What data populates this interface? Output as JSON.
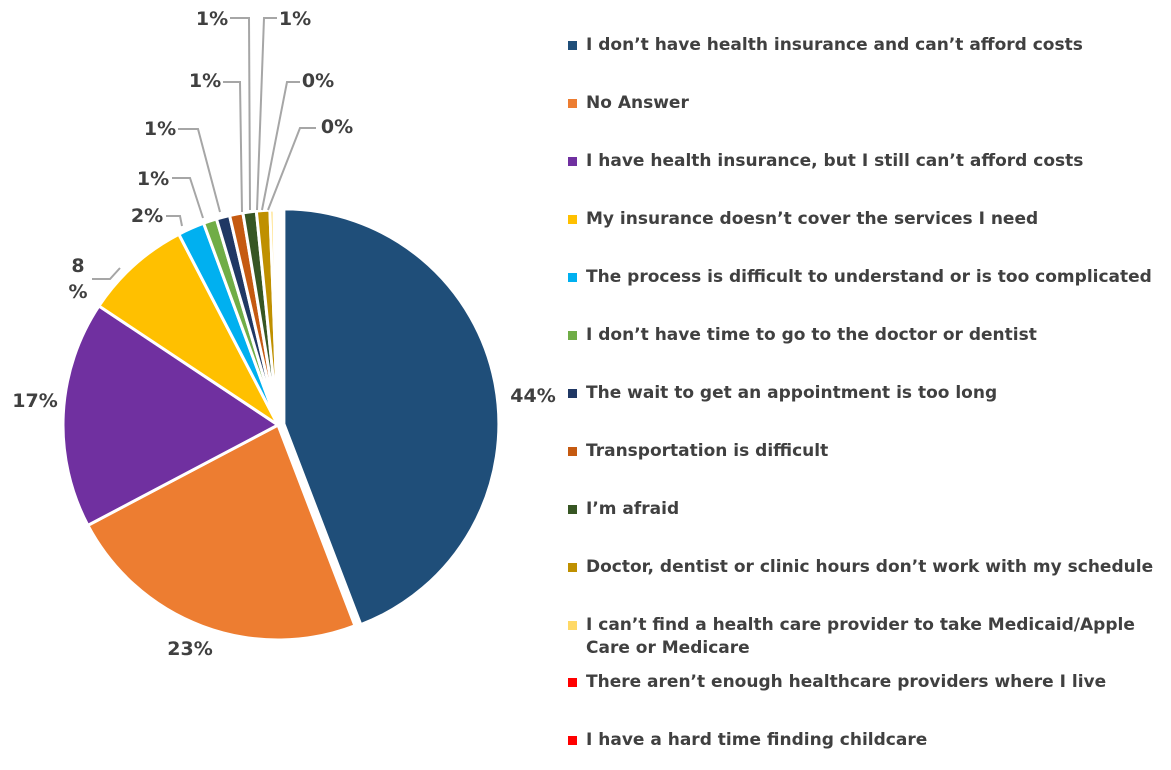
{
  "chart_data": {
    "type": "pie",
    "slices": [
      {
        "label": "I don’t have health insurance and can’t afford costs",
        "value": 44,
        "value_label": "44%",
        "color": "#1f4e79"
      },
      {
        "label": "No Answer",
        "value": 23,
        "value_label": "23%",
        "color": "#ed7d31"
      },
      {
        "label": "I have health insurance, but I still can’t afford costs",
        "value": 17,
        "value_label": "17%",
        "color": "#7030a0"
      },
      {
        "label": "My insurance doesn’t cover the services I need",
        "value": 8,
        "value_label": "8\n%",
        "color": "#ffc000"
      },
      {
        "label": "The process is difficult to understand or is too complicated",
        "value": 2,
        "value_label": "2%",
        "color": "#00b0f0"
      },
      {
        "label": "I don’t have time to go to the doctor or dentist",
        "value": 1,
        "value_label": "1%",
        "color": "#70ad47"
      },
      {
        "label": "The wait to get an appointment is too long",
        "value": 1,
        "value_label": "1%",
        "color": "#203864"
      },
      {
        "label": "Transportation is difficult",
        "value": 1,
        "value_label": "1%",
        "color": "#c55a11"
      },
      {
        "label": "I’m afraid",
        "value": 1,
        "value_label": "1%",
        "color": "#375623"
      },
      {
        "label": "Doctor, dentist or clinic hours don’t work with my schedule",
        "value": 1,
        "value_label": "1%",
        "color": "#bf9000"
      },
      {
        "label": "I can’t find a health care provider to take Medicaid/Apple Care or Medicare",
        "value": 0.3,
        "value_label": "0%",
        "color": "#ffd966"
      },
      {
        "label": "There aren’t enough healthcare providers where I live",
        "value": 0.2,
        "value_label": "0%",
        "color": "#ff0000"
      },
      {
        "label": "I have a hard time finding childcare",
        "value": 0.1,
        "value_label": "",
        "color": "#ff0000"
      }
    ],
    "legend_position": "right"
  }
}
